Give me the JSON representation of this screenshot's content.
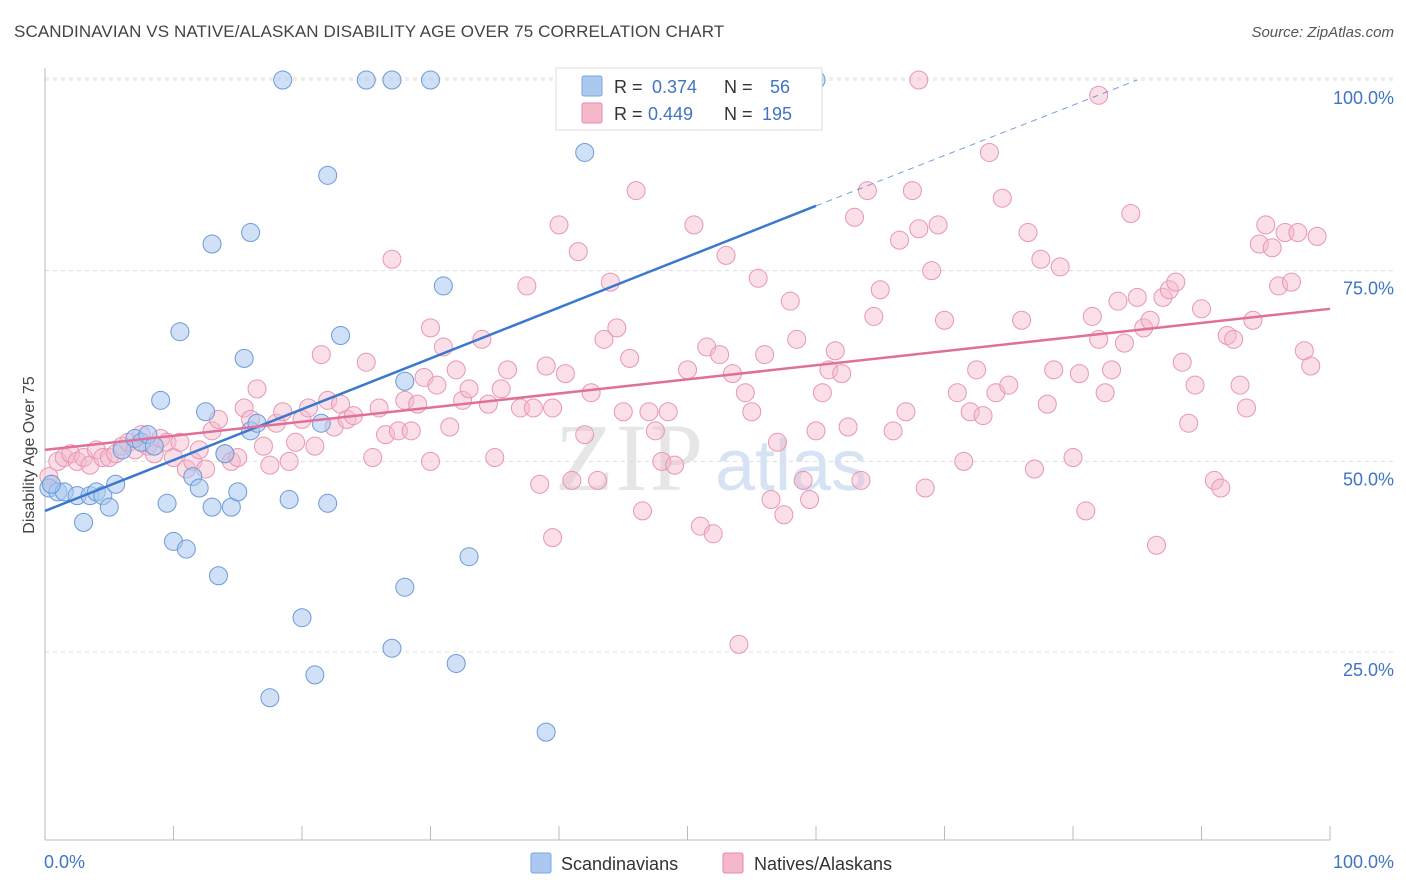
{
  "header": {
    "title": "SCANDINAVIAN VS NATIVE/ALASKAN DISABILITY AGE OVER 75 CORRELATION CHART",
    "source": "Source: ZipAtlas.com"
  },
  "watermark": {
    "zip": "ZIP",
    "atlas": "atlas"
  },
  "legend": {
    "rows": [
      {
        "r_label": "R =",
        "r_value": "0.374",
        "n_label": "N =",
        "n_value": "56",
        "color": "#aac8f0"
      },
      {
        "r_label": "R =",
        "r_value": "0.449",
        "n_label": "N =",
        "n_value": "195",
        "color": "#f5b8cb"
      }
    ]
  },
  "bottom_legend": [
    {
      "label": "Scandinavians",
      "color": "#aac8f0"
    },
    {
      "label": "Natives/Alaskans",
      "color": "#f5b8cb"
    }
  ],
  "chart_data": {
    "type": "scatter",
    "title": "SCANDINAVIAN VS NATIVE/ALASKAN DISABILITY AGE OVER 75 CORRELATION CHART",
    "xlabel": "",
    "ylabel": "Disability Age Over 75",
    "xlim": [
      0,
      100
    ],
    "ylim": [
      0,
      105
    ],
    "x_tick_labels": [
      "0.0%",
      "100.0%"
    ],
    "y_ticks": [
      25,
      50,
      75,
      100
    ],
    "y_tick_labels": [
      "25.0%",
      "50.0%",
      "75.0%",
      "100.0%"
    ],
    "grid": "horizontal dashed",
    "legend_position": "top-center",
    "colors": {
      "scandinavians": "#3a78d0",
      "natives": "#e0709a"
    },
    "series": [
      {
        "name": "Scandinavians",
        "trend": {
          "x0": 0,
          "y0": 43.5,
          "x1": 60,
          "y1": 83.5,
          "dashed_to_x": 85,
          "dashed_to_y": 100
        },
        "points": [
          [
            0.3,
            46.5
          ],
          [
            1,
            46
          ],
          [
            1.5,
            46
          ],
          [
            2.5,
            45.5
          ],
          [
            3,
            42
          ],
          [
            3.5,
            45.5
          ],
          [
            4,
            46
          ],
          [
            4.5,
            45.5
          ],
          [
            5,
            44
          ],
          [
            5.5,
            47
          ],
          [
            6,
            51.5
          ],
          [
            7,
            53
          ],
          [
            7.5,
            52.5
          ],
          [
            8,
            53.5
          ],
          [
            8.5,
            52
          ],
          [
            9,
            58
          ],
          [
            9.5,
            44.5
          ],
          [
            10,
            39.5
          ],
          [
            10.5,
            67
          ],
          [
            11,
            38.5
          ],
          [
            11.5,
            48
          ],
          [
            12,
            46.5
          ],
          [
            12.5,
            56.5
          ],
          [
            13,
            44
          ],
          [
            13,
            78.5
          ],
          [
            13.5,
            35
          ],
          [
            14,
            51
          ],
          [
            14.5,
            44
          ],
          [
            15,
            46
          ],
          [
            15.5,
            63.5
          ],
          [
            16,
            54
          ],
          [
            16,
            80
          ],
          [
            16.5,
            55
          ],
          [
            17.5,
            19
          ],
          [
            18.5,
            100
          ],
          [
            19,
            45
          ],
          [
            20,
            29.5
          ],
          [
            21,
            22
          ],
          [
            21.5,
            55
          ],
          [
            22,
            44.5
          ],
          [
            22,
            87.5
          ],
          [
            23,
            66.5
          ],
          [
            25,
            100
          ],
          [
            27,
            100
          ],
          [
            27,
            25.5
          ],
          [
            28,
            33.5
          ],
          [
            28,
            60.5
          ],
          [
            30,
            100
          ],
          [
            31,
            73
          ],
          [
            32,
            23.5
          ],
          [
            33,
            37.5
          ],
          [
            39,
            14.5
          ],
          [
            42,
            90.5
          ],
          [
            52,
            100
          ],
          [
            60,
            100
          ],
          [
            0.5,
            47
          ]
        ]
      },
      {
        "name": "Natives/Alaskans",
        "trend": {
          "x0": 0,
          "y0": 51.5,
          "x1": 100,
          "y1": 70
        },
        "points": [
          [
            0.3,
            48
          ],
          [
            0.5,
            47
          ],
          [
            1,
            50
          ],
          [
            1.5,
            50.5
          ],
          [
            2,
            51
          ],
          [
            2.5,
            50
          ],
          [
            3,
            50.5
          ],
          [
            3.5,
            49.5
          ],
          [
            4,
            51.5
          ],
          [
            4.5,
            50.5
          ],
          [
            5,
            50.5
          ],
          [
            5.5,
            51
          ],
          [
            6,
            52
          ],
          [
            6.5,
            52.5
          ],
          [
            7,
            51.5
          ],
          [
            7.5,
            53.5
          ],
          [
            8,
            52
          ],
          [
            8.5,
            51
          ],
          [
            9,
            53
          ],
          [
            9.5,
            52.5
          ],
          [
            10,
            50.5
          ],
          [
            10.5,
            52.5
          ],
          [
            11,
            49
          ],
          [
            11.5,
            50
          ],
          [
            12,
            51.5
          ],
          [
            12.5,
            49
          ],
          [
            13,
            54
          ],
          [
            13.5,
            55.5
          ],
          [
            14,
            51
          ],
          [
            14.5,
            50
          ],
          [
            15,
            50.5
          ],
          [
            15.5,
            57
          ],
          [
            16,
            55.5
          ],
          [
            16.5,
            59.5
          ],
          [
            17,
            52
          ],
          [
            17.5,
            49.5
          ],
          [
            18,
            55
          ],
          [
            18.5,
            56.5
          ],
          [
            19,
            50
          ],
          [
            19.5,
            52.5
          ],
          [
            20,
            55.5
          ],
          [
            20.5,
            57
          ],
          [
            21,
            52
          ],
          [
            21.5,
            64
          ],
          [
            22,
            58
          ],
          [
            22.5,
            54.5
          ],
          [
            23,
            57.5
          ],
          [
            23.5,
            55.5
          ],
          [
            24,
            56
          ],
          [
            25,
            63
          ],
          [
            25.5,
            50.5
          ],
          [
            26,
            57
          ],
          [
            26.5,
            53.5
          ],
          [
            27,
            76.5
          ],
          [
            27.5,
            54
          ],
          [
            28,
            58
          ],
          [
            28.5,
            54
          ],
          [
            29,
            57.5
          ],
          [
            29.5,
            61
          ],
          [
            30,
            67.5
          ],
          [
            30.5,
            60
          ],
          [
            31,
            65
          ],
          [
            31.5,
            54.5
          ],
          [
            32,
            62
          ],
          [
            32.5,
            58
          ],
          [
            33,
            59.5
          ],
          [
            34,
            66
          ],
          [
            34.5,
            57.5
          ],
          [
            35,
            50.5
          ],
          [
            35.5,
            59.5
          ],
          [
            36,
            62
          ],
          [
            37,
            57
          ],
          [
            37.5,
            73
          ],
          [
            38,
            57
          ],
          [
            38.5,
            47
          ],
          [
            39,
            62.5
          ],
          [
            39.5,
            40
          ],
          [
            40,
            81
          ],
          [
            40.5,
            61.5
          ],
          [
            41,
            47.5
          ],
          [
            41.5,
            77.5
          ],
          [
            42,
            53.5
          ],
          [
            42.5,
            59
          ],
          [
            43,
            47.5
          ],
          [
            43.5,
            66
          ],
          [
            44,
            73.5
          ],
          [
            44.5,
            67.5
          ],
          [
            45,
            56.5
          ],
          [
            45.5,
            63.5
          ],
          [
            46,
            85.5
          ],
          [
            46.5,
            43.5
          ],
          [
            47,
            56.5
          ],
          [
            47.5,
            54
          ],
          [
            48,
            50
          ],
          [
            48.5,
            56.5
          ],
          [
            49,
            49.5
          ],
          [
            50,
            62
          ],
          [
            50.5,
            81
          ],
          [
            51,
            41.5
          ],
          [
            51.5,
            65
          ],
          [
            52,
            40.5
          ],
          [
            52.5,
            64
          ],
          [
            53,
            77
          ],
          [
            53.5,
            61.5
          ],
          [
            54,
            26
          ],
          [
            54.5,
            59
          ],
          [
            55,
            56.5
          ],
          [
            55.5,
            74
          ],
          [
            56,
            64
          ],
          [
            56.5,
            45
          ],
          [
            57,
            52.5
          ],
          [
            57.5,
            43
          ],
          [
            58,
            71
          ],
          [
            58.5,
            66
          ],
          [
            59,
            47.5
          ],
          [
            59.5,
            45
          ],
          [
            60,
            54
          ],
          [
            60.5,
            59
          ],
          [
            61,
            62
          ],
          [
            61.5,
            64.5
          ],
          [
            62,
            61.5
          ],
          [
            62.5,
            54.5
          ],
          [
            63,
            82
          ],
          [
            63.5,
            47.5
          ],
          [
            64,
            85.5
          ],
          [
            64.5,
            69
          ],
          [
            65,
            72.5
          ],
          [
            66,
            54
          ],
          [
            66.5,
            79
          ],
          [
            67,
            56.5
          ],
          [
            67.5,
            85.5
          ],
          [
            68,
            80.5
          ],
          [
            68.5,
            46.5
          ],
          [
            69,
            75
          ],
          [
            69.5,
            81
          ],
          [
            70,
            68.5
          ],
          [
            71,
            59
          ],
          [
            71.5,
            50
          ],
          [
            72,
            56.5
          ],
          [
            72.5,
            62
          ],
          [
            73,
            56
          ],
          [
            73.5,
            90.5
          ],
          [
            74,
            59
          ],
          [
            74.5,
            84.5
          ],
          [
            75,
            60
          ],
          [
            76,
            68.5
          ],
          [
            76.5,
            80
          ],
          [
            77,
            49
          ],
          [
            77.5,
            76.5
          ],
          [
            78,
            57.5
          ],
          [
            78.5,
            62
          ],
          [
            79,
            75.5
          ],
          [
            80,
            50.5
          ],
          [
            80.5,
            61.5
          ],
          [
            81,
            43.5
          ],
          [
            81.5,
            69
          ],
          [
            82,
            66
          ],
          [
            82.5,
            59
          ],
          [
            83,
            62
          ],
          [
            83.5,
            71
          ],
          [
            84,
            65.5
          ],
          [
            84.5,
            82.5
          ],
          [
            85,
            71.5
          ],
          [
            85.5,
            67.5
          ],
          [
            86,
            68.5
          ],
          [
            86.5,
            39
          ],
          [
            87,
            71.5
          ],
          [
            87.5,
            72.5
          ],
          [
            88,
            73.5
          ],
          [
            88.5,
            63
          ],
          [
            89,
            55
          ],
          [
            89.5,
            60
          ],
          [
            90,
            70
          ],
          [
            91,
            47.5
          ],
          [
            91.5,
            46.5
          ],
          [
            92,
            66.5
          ],
          [
            92.5,
            66
          ],
          [
            93,
            60
          ],
          [
            93.5,
            57
          ],
          [
            94,
            68.5
          ],
          [
            94.5,
            78.5
          ],
          [
            95,
            81
          ],
          [
            95.5,
            78
          ],
          [
            96,
            73
          ],
          [
            96.5,
            80
          ],
          [
            97,
            73.5
          ],
          [
            97.5,
            80
          ],
          [
            98,
            64.5
          ],
          [
            98.5,
            62.5
          ],
          [
            99,
            79.5
          ],
          [
            68,
            100
          ],
          [
            82,
            98
          ],
          [
            30,
            50
          ],
          [
            39.5,
            57
          ]
        ]
      }
    ]
  }
}
